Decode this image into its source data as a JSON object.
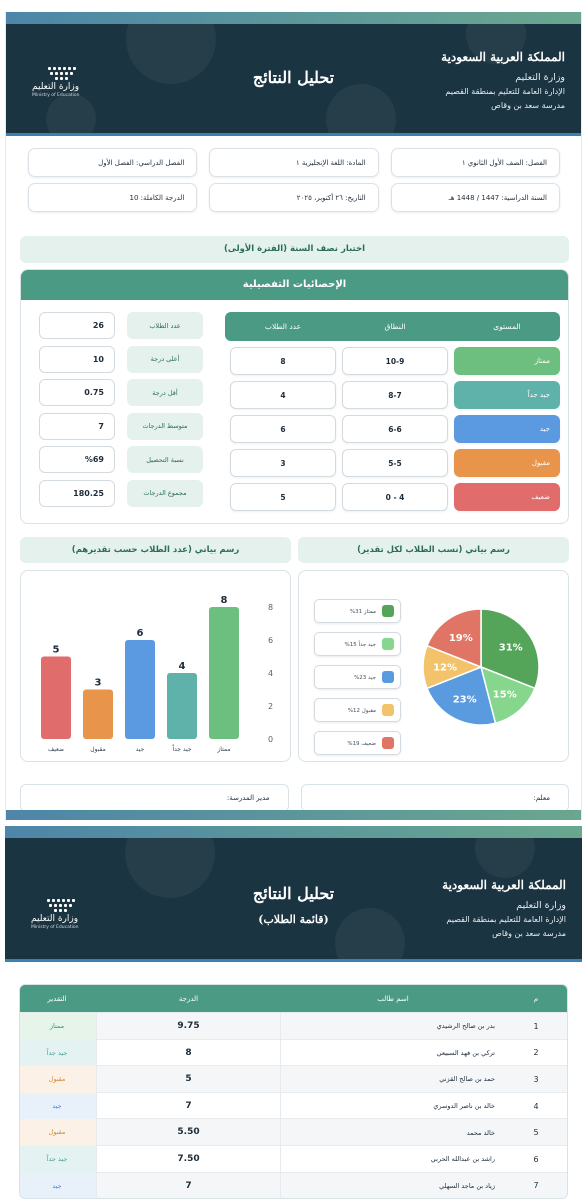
{
  "header": {
    "kingdom": "المملكة العربية السعودية",
    "ministry": "وزارة التعليم",
    "directorate": "الإدارة العامة للتعليم بمنطقة القصيم",
    "school": "مدرسة سعد بن وقاص",
    "title": "تحليل النتائج",
    "logo_ar": "وزارة التعليم",
    "logo_en": "Ministry of Education"
  },
  "info": {
    "class": "الفصل: الصف الأول الثانوي ١",
    "subject": "المادة: اللغة الإنجليزية ١",
    "semester": "الفصل الدراسي: الفصل الأول",
    "year": "السنة الدراسية: 1447 / 1448 هـ",
    "date": "التاريخ: ٢٦ أكتوبر، ٢٠٢٥",
    "full_mark": "الدرجة الكاملة: 10"
  },
  "exam_title": "اختبار نصف السنة (الفترة الأولى)",
  "stats": {
    "heading": "الإحصائيات التفصيلية",
    "grade_headers": [
      "المستوى",
      "النطاق",
      "عدد الطلاب"
    ],
    "grades": [
      {
        "level": "ممتاز",
        "range": "10-9",
        "count": "8",
        "color": "#6cbf7e"
      },
      {
        "level": "جيد جداً",
        "range": "8-7",
        "count": "4",
        "color": "#5fb2aa"
      },
      {
        "level": "جيد",
        "range": "6-6",
        "count": "6",
        "color": "#5b9ae0"
      },
      {
        "level": "مقبول",
        "range": "5-5",
        "count": "3",
        "color": "#e8944a"
      },
      {
        "level": "ضعيف",
        "range": "4 - 0",
        "count": "5",
        "color": "#e06c6c"
      }
    ],
    "summary": [
      {
        "label": "عدد الطلاب",
        "value": "26"
      },
      {
        "label": "أعلى درجة",
        "value": "10"
      },
      {
        "label": "أقل درجة",
        "value": "0.75"
      },
      {
        "label": "متوسط الدرجات",
        "value": "7"
      },
      {
        "label": "نسبة التحصيل",
        "value": "%69"
      },
      {
        "label": "مجموع الدرجات",
        "value": "180.25"
      }
    ]
  },
  "charts": {
    "pie_title": "رسم بياني (نسب الطلاب لكل تقدير)",
    "bar_title": "رسم بياني (عدد الطلاب حسب تقديرهم)"
  },
  "chart_data": [
    {
      "type": "pie",
      "title": "رسم بياني (نسب الطلاب لكل تقدير)",
      "labels": [
        "ممتاز",
        "جيد جداً",
        "جيد",
        "مقبول",
        "ضعيف"
      ],
      "values": [
        31,
        15,
        23,
        12,
        19
      ],
      "value_labels": [
        "31%",
        "15%",
        "23%",
        "12%",
        "19%"
      ],
      "legend_labels": [
        "ممتاز 31%",
        "جيد جداً 15%",
        "جيد 23%",
        "مقبول 12%",
        "ضعيف 19%"
      ],
      "colors": [
        "#54a55a",
        "#86d68d",
        "#5a9be0",
        "#f2c36b",
        "#e07565"
      ],
      "legend": "left"
    },
    {
      "type": "bar",
      "title": "رسم بياني (عدد الطلاب حسب تقديرهم)",
      "categories": [
        "ضعيف",
        "مقبول",
        "جيد",
        "جيد جداً",
        "ممتاز"
      ],
      "values": [
        5,
        3,
        6,
        4,
        8
      ],
      "colors": [
        "#e06c6c",
        "#e8944a",
        "#5b9ae0",
        "#5fb2aa",
        "#6cbf7e"
      ],
      "ylim": [
        0,
        8
      ],
      "yticks": [
        "8",
        "6",
        "4",
        "2",
        "0"
      ],
      "grid": false
    }
  ],
  "signatures": {
    "teacher": "معلم:",
    "principal": "مدير المدرسة:"
  },
  "page2": {
    "title": "تحليل النتائج",
    "subtitle": "(قائمة الطلاب)",
    "table_headers": [
      "م",
      "اسم طالب",
      "الدرجة",
      "التقدير"
    ],
    "rows": [
      {
        "num": "1",
        "name": "بدر بن صالح الرشيدي",
        "score": "9.75",
        "grade": "ممتاز",
        "color": "#3f9a5f",
        "bg": "#e6f4ea"
      },
      {
        "num": "2",
        "name": "تركي بن فهد السبيعي",
        "score": "8",
        "grade": "جيد جداً",
        "color": "#4aa39b",
        "bg": "#e4f3f1"
      },
      {
        "num": "3",
        "name": "حمد بن صالح القزني",
        "score": "5",
        "grade": "مقبول",
        "color": "#d98a3d",
        "bg": "#fbf1e6"
      },
      {
        "num": "4",
        "name": "خالد بن ناصر الدوسري",
        "score": "7",
        "grade": "جيد",
        "color": "#4a87cc",
        "bg": "#e8f0fa"
      },
      {
        "num": "5",
        "name": "خالد محمد",
        "score": "5.50",
        "grade": "مقبول",
        "color": "#d98a3d",
        "bg": "#fbf1e6"
      },
      {
        "num": "6",
        "name": "راشد بن عبدالله الحربي",
        "score": "7.50",
        "grade": "جيد جداً",
        "color": "#4aa39b",
        "bg": "#e4f3f1"
      },
      {
        "num": "7",
        "name": "زياد بن ماجد السهلي",
        "score": "7",
        "grade": "جيد",
        "color": "#4a87cc",
        "bg": "#e8f0fa"
      }
    ]
  }
}
